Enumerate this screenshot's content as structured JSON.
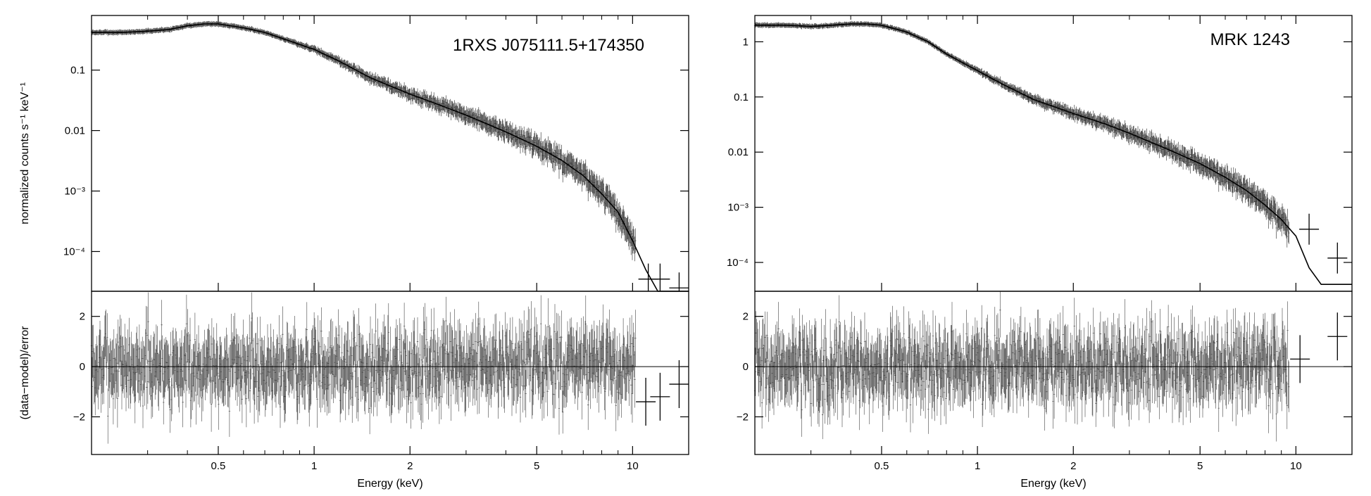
{
  "chart_data": [
    {
      "type": "line",
      "title": "1RXS J075111.5+174350",
      "xlabel": "Energy (keV)",
      "x_scale": "log",
      "xlim": [
        0.2,
        15
      ],
      "x_ticks": [
        0.5,
        1,
        2,
        5,
        10
      ],
      "x_tick_labels": [
        "0.5",
        "1",
        "2",
        "5",
        "10"
      ],
      "spectrum": {
        "ylabel": "normalized counts s⁻¹ keV⁻¹",
        "y_scale": "log",
        "ylim": [
          2.2e-05,
          0.8
        ],
        "y_ticks": [
          0.0001,
          0.001,
          0.01,
          0.1
        ],
        "y_tick_labels": [
          "10⁻⁴",
          "10⁻³",
          "0.01",
          "0.1"
        ],
        "model": {
          "x": [
            0.2,
            0.25,
            0.3,
            0.35,
            0.4,
            0.45,
            0.5,
            0.6,
            0.7,
            0.8,
            1.0,
            1.2,
            1.5,
            2.0,
            2.5,
            3.0,
            4.0,
            5.0,
            6.0,
            7.0,
            8.0,
            9.0,
            10.0,
            11.0,
            12.0,
            13.0,
            15.0
          ],
          "y": [
            0.42,
            0.42,
            0.44,
            0.47,
            0.54,
            0.58,
            0.58,
            0.5,
            0.42,
            0.33,
            0.22,
            0.14,
            0.075,
            0.04,
            0.026,
            0.018,
            0.0095,
            0.0055,
            0.0032,
            0.0018,
            0.0009,
            0.00045,
            0.00015,
            5e-05,
            2.2e-05,
            2.2e-05,
            2.2e-05
          ]
        },
        "data": {
          "x": [
            11.2,
            12.2,
            14.0
          ],
          "y": [
            3.5e-05,
            3.5e-05,
            2.5e-05
          ]
        }
      },
      "residuals": {
        "ylabel": "(data−model)/error",
        "ylim": [
          -3.5,
          3.0
        ],
        "y_ticks": [
          -2,
          0,
          2
        ],
        "y_tick_labels": [
          "−2",
          "0",
          "2"
        ],
        "data": {
          "x": [
            11.0,
            12.2,
            14.0
          ],
          "y": [
            -1.4,
            -1.2,
            -0.7
          ]
        }
      }
    },
    {
      "type": "line",
      "title": "MRK 1243",
      "xlabel": "Energy (keV)",
      "x_scale": "log",
      "xlim": [
        0.2,
        15
      ],
      "x_ticks": [
        0.5,
        1,
        2,
        5,
        10
      ],
      "x_tick_labels": [
        "0.5",
        "1",
        "2",
        "5",
        "10"
      ],
      "spectrum": {
        "ylabel": "",
        "y_scale": "log",
        "ylim": [
          3e-05,
          3.0
        ],
        "y_ticks": [
          0.0001,
          0.001,
          0.01,
          0.1,
          1
        ],
        "y_tick_labels": [
          "10⁻⁴",
          "10⁻³",
          "0.01",
          "0.1",
          "1"
        ],
        "model": {
          "x": [
            0.2,
            0.25,
            0.3,
            0.35,
            0.4,
            0.45,
            0.5,
            0.6,
            0.7,
            0.8,
            1.0,
            1.2,
            1.5,
            2.0,
            2.5,
            3.0,
            4.0,
            5.0,
            6.0,
            7.0,
            8.0,
            9.0,
            10.0,
            11.0,
            12.0,
            15.0
          ],
          "y": [
            2.0,
            2.0,
            1.9,
            2.0,
            2.1,
            2.1,
            2.0,
            1.5,
            1.0,
            0.6,
            0.3,
            0.17,
            0.09,
            0.05,
            0.033,
            0.022,
            0.011,
            0.0062,
            0.0035,
            0.002,
            0.0011,
            0.0006,
            0.0003,
            8e-05,
            4e-05,
            4e-05
          ]
        },
        "data": {
          "x": [
            11.0,
            13.5
          ],
          "y": [
            0.0004,
            0.00012
          ]
        }
      },
      "residuals": {
        "ylabel": "",
        "ylim": [
          -3.5,
          3.0
        ],
        "y_ticks": [
          -2,
          0,
          2
        ],
        "y_tick_labels": [
          "−2",
          "0",
          "2"
        ],
        "data": {
          "x": [
            10.3,
            13.5
          ],
          "y": [
            0.3,
            1.2
          ]
        }
      }
    }
  ]
}
